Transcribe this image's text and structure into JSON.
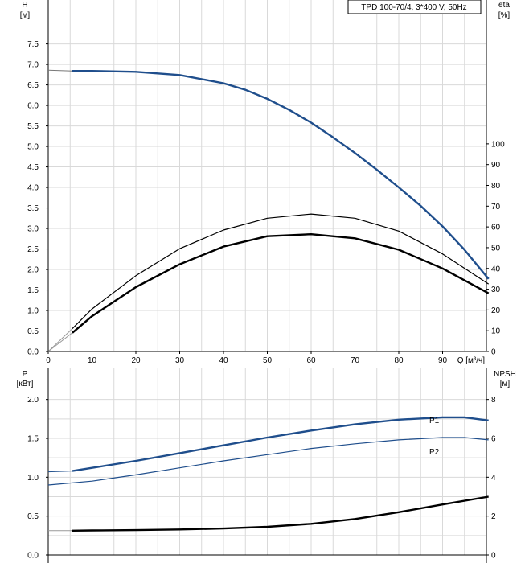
{
  "chart_data": [
    {
      "type": "line",
      "title": "TPD 100-70/4, 3*400 V, 50Hz",
      "ylabel": "H",
      "yunit": "[м]",
      "y2label": "eta",
      "y2unit": "[%]",
      "xlabel": "Q [м³/ч]",
      "xlim": [
        0,
        100
      ],
      "ylim": [
        0,
        8.1
      ],
      "y2lim": [
        0,
        160
      ],
      "grid": true,
      "x_ticks": [
        "0",
        "10",
        "20",
        "30",
        "40",
        "50",
        "60",
        "70",
        "80",
        "90"
      ],
      "y_ticks": [
        "0.0",
        "0.5",
        "1.0",
        "1.5",
        "2.0",
        "2.5",
        "3.0",
        "3.5",
        "4.0",
        "4.5",
        "5.0",
        "5.5",
        "6.0",
        "6.5",
        "7.0",
        "7.5"
      ],
      "y2_ticks": [
        "0",
        "10",
        "20",
        "30",
        "40",
        "50",
        "60",
        "70",
        "80",
        "90",
        "100"
      ],
      "series": [
        {
          "id": "head",
          "axis": "left",
          "color": "#1f4e8c",
          "x": [
            5.5,
            10,
            20,
            30,
            40,
            45,
            50,
            55,
            60,
            65,
            70,
            75,
            80,
            85,
            90,
            95,
            100.5
          ],
          "y": [
            6.84,
            6.84,
            6.82,
            6.74,
            6.54,
            6.38,
            6.16,
            5.89,
            5.58,
            5.22,
            4.84,
            4.43,
            4.0,
            3.55,
            3.05,
            2.48,
            1.77
          ]
        },
        {
          "id": "eta",
          "axis": "right",
          "color": "#000000",
          "x": [
            5.5,
            10,
            20,
            30,
            40,
            50,
            60,
            70,
            80,
            90,
            100.5
          ],
          "y": [
            11,
            20.5,
            36.5,
            49.5,
            58.5,
            64.2,
            66.2,
            64.2,
            58,
            47,
            32.5
          ]
        },
        {
          "id": "eta-pump",
          "axis": "right",
          "color": "#000000",
          "x": [
            5.5,
            10,
            20,
            30,
            40,
            50,
            60,
            70,
            80,
            90,
            100.5
          ],
          "y": [
            9,
            17,
            31,
            42,
            50.5,
            55.5,
            56.5,
            54.5,
            49,
            40,
            28
          ]
        }
      ]
    },
    {
      "type": "line",
      "ylabel": "P",
      "yunit": "[кВт]",
      "y2label": "NPSH",
      "y2unit": "[м]",
      "xlim": [
        0,
        100
      ],
      "ylim": [
        0,
        2.4
      ],
      "y2lim": [
        0,
        9.6
      ],
      "grid": true,
      "y_ticks": [
        "0.0",
        "0.5",
        "1.0",
        "1.5",
        "2.0"
      ],
      "y2_ticks": [
        "0",
        "2",
        "4",
        "6",
        "8"
      ],
      "series": [
        {
          "id": "p1",
          "name": "P1",
          "axis": "left",
          "color": "#1f4e8c",
          "x": [
            5.5,
            10,
            20,
            30,
            40,
            50,
            60,
            70,
            80,
            90,
            95,
            100.5
          ],
          "y": [
            1.08,
            1.12,
            1.21,
            1.31,
            1.41,
            1.51,
            1.6,
            1.68,
            1.74,
            1.77,
            1.77,
            1.73
          ]
        },
        {
          "id": "p2",
          "name": "P2",
          "axis": "left",
          "color": "#1f4e8c",
          "x": [
            0,
            10,
            20,
            30,
            40,
            50,
            60,
            70,
            80,
            90,
            95,
            100.5
          ],
          "y": [
            0.9,
            0.95,
            1.03,
            1.12,
            1.21,
            1.29,
            1.37,
            1.43,
            1.48,
            1.51,
            1.51,
            1.48
          ]
        },
        {
          "id": "npsh",
          "axis": "right",
          "color": "#000000",
          "x": [
            5.5,
            10,
            20,
            30,
            40,
            50,
            60,
            70,
            80,
            90,
            100.5
          ],
          "y": [
            1.25,
            1.26,
            1.28,
            1.31,
            1.36,
            1.45,
            1.6,
            1.85,
            2.2,
            2.6,
            3.0
          ]
        }
      ]
    }
  ]
}
